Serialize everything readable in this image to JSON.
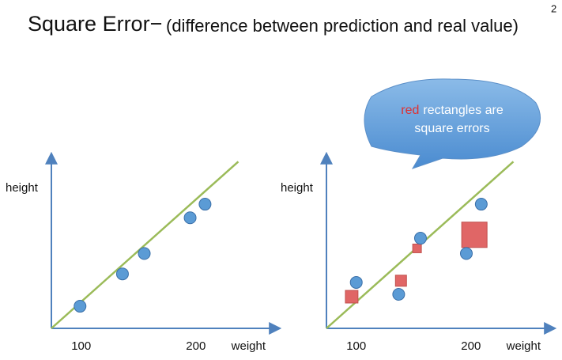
{
  "title": "Square Error−",
  "subtitle": "(difference between prediction and real value)",
  "superscript": "2",
  "callout": {
    "highlight": "red",
    "line1": "rectangles are",
    "line2": "square errors"
  },
  "chart_data": [
    {
      "type": "scatter",
      "xlabel": "weight",
      "ylabel": "height",
      "xlim": [
        74,
        267
      ],
      "ylim": [
        0,
        100
      ],
      "xticks": [
        100,
        200
      ],
      "color": "#5b9bd5",
      "line_color": "#9bbb59",
      "x": [
        99,
        136,
        155,
        195,
        208
      ],
      "values": [
        13,
        32,
        44,
        65,
        73
      ],
      "fit": {
        "x": [
          74,
          237
        ],
        "y": [
          0,
          98
        ]
      }
    },
    {
      "type": "scatter",
      "xlabel": "weight",
      "ylabel": "height",
      "xlim": [
        74,
        267
      ],
      "ylim": [
        0,
        100
      ],
      "xticks": [
        100,
        200
      ],
      "color": "#5b9bd5",
      "line_color": "#9bbb59",
      "error_color": "#e06666",
      "x": [
        100,
        137,
        156,
        196,
        209
      ],
      "values": [
        27,
        20,
        53,
        44,
        73
      ],
      "fit": {
        "x": [
          74,
          237
        ],
        "y": [
          0,
          98
        ]
      },
      "square_errors": {
        "x": [
          96,
          139,
          153,
          203
        ],
        "y": [
          18.6,
          28,
          47,
          55
        ],
        "size": [
          7.4,
          6.5,
          5.1,
          14.9
        ]
      }
    }
  ]
}
